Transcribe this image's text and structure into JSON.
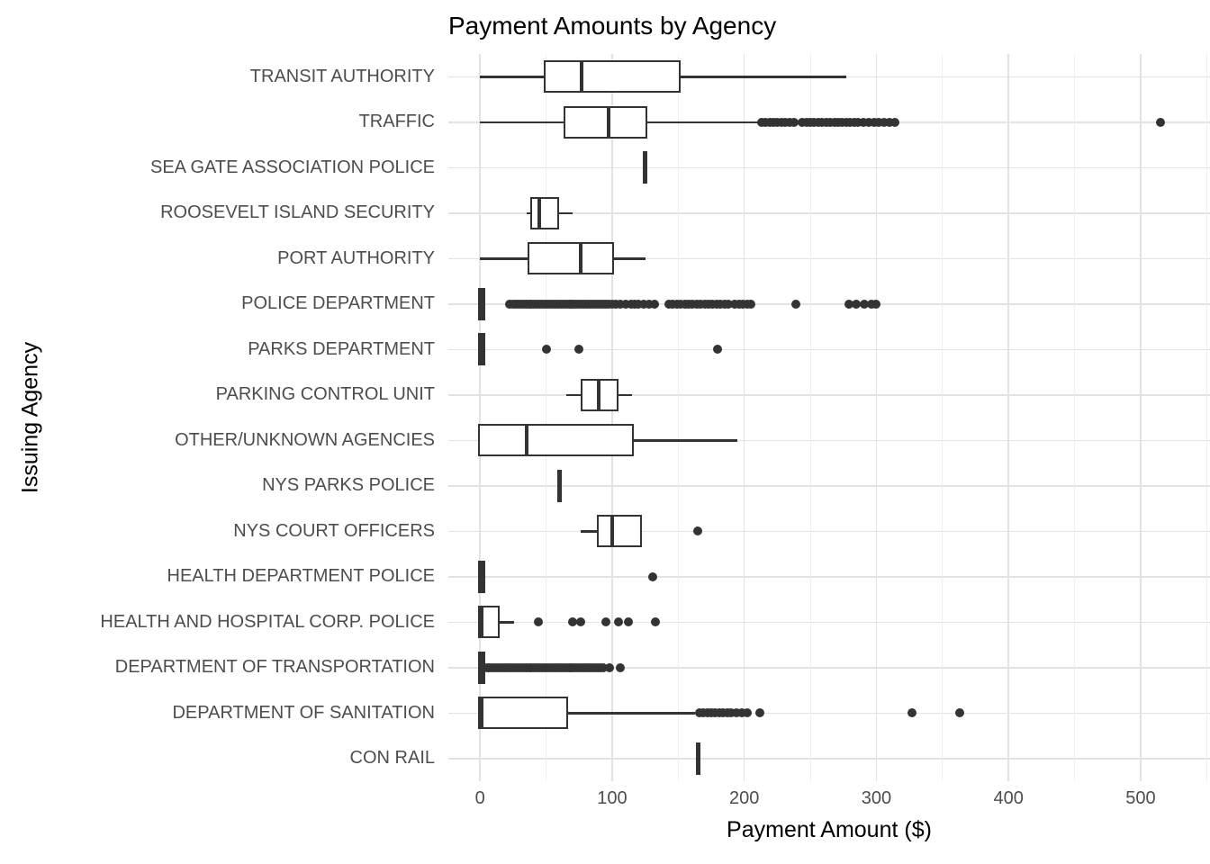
{
  "title": "Payment Amounts by Agency",
  "style": {
    "background": "#ffffff",
    "box_color": "#333333",
    "grid_major": "#e3e3e3",
    "grid_minor": "#efefef",
    "axis_text_color": "#4d4d4d",
    "title_color": "#000000"
  },
  "chart_data": {
    "type": "boxplot",
    "orientation": "horizontal",
    "title": "Payment Amounts by Agency",
    "xlabel": "Payment Amount ($)",
    "ylabel": "Issuing Agency",
    "xlim": [
      -24,
      552.5
    ],
    "x_major_ticks": [
      0,
      100,
      200,
      300,
      400,
      500
    ],
    "x_minor_ticks": [
      50,
      150,
      250,
      350,
      450,
      550
    ],
    "grid": true,
    "legend": false,
    "categories": [
      "TRANSIT AUTHORITY",
      "TRAFFIC",
      "SEA GATE ASSOCIATION POLICE",
      "ROOSEVELT ISLAND SECURITY",
      "PORT AUTHORITY",
      "POLICE DEPARTMENT",
      "PARKS DEPARTMENT",
      "PARKING CONTROL UNIT",
      "OTHER/UNKNOWN AGENCIES",
      "NYS PARKS POLICE",
      "NYS COURT OFFICERS",
      "HEALTH DEPARTMENT POLICE",
      "HEALTH AND HOSPITAL CORP. POLICE",
      "DEPARTMENT OF TRANSPORTATION",
      "DEPARTMENT OF SANITATION",
      "CON RAIL"
    ],
    "boxes": [
      {
        "agency": "TRANSIT AUTHORITY",
        "min": 0,
        "q1": 50,
        "median": 77,
        "q3": 150,
        "max": 277,
        "outliers": []
      },
      {
        "agency": "TRAFFIC",
        "min": 0,
        "q1": 65,
        "median": 97,
        "q3": 125,
        "max": 214,
        "outliers": [
          213,
          216,
          219,
          222,
          225,
          228,
          231,
          234,
          238,
          244,
          247,
          250,
          253,
          256,
          259,
          262,
          265,
          268,
          271,
          274,
          277,
          280,
          283,
          286,
          290,
          294,
          298,
          302,
          306,
          310,
          314,
          515
        ]
      },
      {
        "agency": "SEA GATE ASSOCIATION POLICE",
        "min": 125,
        "q1": 125,
        "median": 125,
        "q3": 125,
        "max": 125,
        "outliers": []
      },
      {
        "agency": "ROOSEVELT ISLAND SECURITY",
        "min": 35,
        "q1": 40,
        "median": 45,
        "q3": 58,
        "max": 70,
        "outliers": []
      },
      {
        "agency": "PORT AUTHORITY",
        "min": 0,
        "q1": 38,
        "median": 76,
        "q3": 100,
        "max": 125,
        "outliers": []
      },
      {
        "agency": "POLICE DEPARTMENT",
        "min": 0,
        "q1": 0,
        "median": 1,
        "q3": 2,
        "max": 3,
        "outliers": [
          22,
          25,
          27,
          29,
          31,
          33,
          35,
          37,
          39,
          41,
          43,
          45,
          47,
          49,
          51,
          53,
          55,
          57,
          59,
          61,
          63,
          65,
          67,
          69,
          71,
          73,
          75,
          77,
          79,
          81,
          83,
          85,
          87,
          89,
          91,
          93,
          95,
          97,
          100,
          103,
          106,
          110,
          114,
          117,
          120,
          124,
          128,
          132,
          143,
          146,
          149,
          152,
          155,
          158,
          161,
          164,
          167,
          170,
          173,
          176,
          179,
          182,
          185,
          188,
          193,
          196,
          199,
          202,
          205,
          239,
          279,
          285,
          291,
          296,
          300
        ]
      },
      {
        "agency": "PARKS DEPARTMENT",
        "min": 0,
        "q1": 0,
        "median": 1,
        "q3": 2,
        "max": 3,
        "outliers": [
          50,
          75,
          180
        ]
      },
      {
        "agency": "PARKING CONTROL UNIT",
        "min": 65,
        "q1": 78,
        "median": 90,
        "q3": 103,
        "max": 115,
        "outliers": []
      },
      {
        "agency": "OTHER/UNKNOWN AGENCIES",
        "min": 0,
        "q1": 0,
        "median": 35,
        "q3": 115,
        "max": 195,
        "outliers": []
      },
      {
        "agency": "NYS PARKS POLICE",
        "min": 60,
        "q1": 60,
        "median": 60,
        "q3": 60,
        "max": 60,
        "outliers": []
      },
      {
        "agency": "NYS COURT OFFICERS",
        "min": 76,
        "q1": 90,
        "median": 100,
        "q3": 121,
        "max": 121,
        "outliers": [
          165
        ]
      },
      {
        "agency": "HEALTH DEPARTMENT POLICE",
        "min": 0,
        "q1": 0,
        "median": 1,
        "q3": 2,
        "max": 3,
        "outliers": [
          131
        ]
      },
      {
        "agency": "HEALTH AND HOSPITAL CORP. POLICE",
        "min": 0,
        "q1": 0,
        "median": 1,
        "q3": 13,
        "max": 26,
        "outliers": [
          44,
          70,
          76,
          95,
          105,
          112,
          133
        ]
      },
      {
        "agency": "DEPARTMENT OF TRANSPORTATION",
        "min": 0,
        "q1": 0,
        "median": 1,
        "q3": 2,
        "max": 4,
        "outliers": [
          5,
          7,
          9,
          11,
          13,
          15,
          17,
          19,
          21,
          23,
          25,
          27,
          29,
          31,
          33,
          35,
          37,
          39,
          41,
          43,
          45,
          47,
          49,
          51,
          53,
          55,
          57,
          59,
          61,
          63,
          65,
          67,
          69,
          71,
          73,
          75,
          77,
          79,
          81,
          83,
          85,
          87,
          89,
          91,
          93,
          98,
          106
        ]
      },
      {
        "agency": "DEPARTMENT OF SANITATION",
        "min": 0,
        "q1": 0,
        "median": 1,
        "q3": 65,
        "max": 163,
        "outliers": [
          166,
          169,
          172,
          175,
          178,
          181,
          184,
          187,
          190,
          194,
          198,
          202,
          212,
          327,
          363
        ]
      },
      {
        "agency": "CON RAIL",
        "min": 165,
        "q1": 165,
        "median": 165,
        "q3": 165,
        "max": 165,
        "outliers": []
      }
    ]
  }
}
